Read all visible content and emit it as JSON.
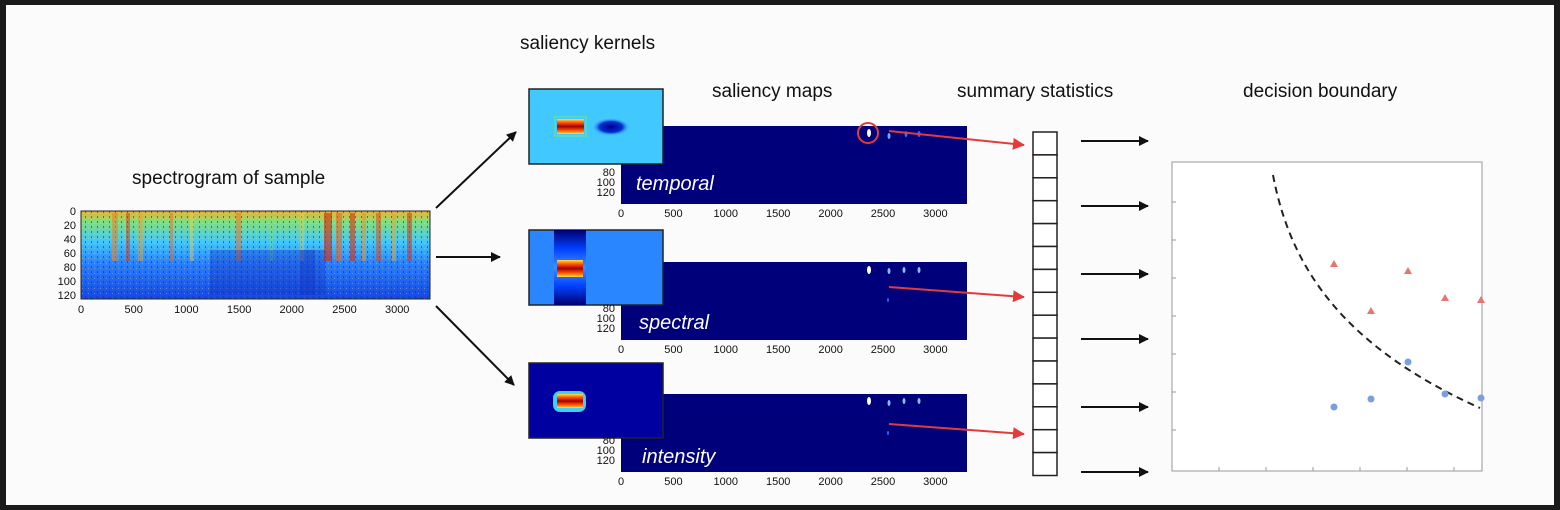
{
  "titles": {
    "spectrogram": "spectrogram of sample",
    "kernels": "saliency kernels",
    "maps": "saliency maps",
    "stats": "summary statistics",
    "boundary": "decision boundary"
  },
  "spectrogram": {
    "yticks": [
      "0",
      "20",
      "40",
      "60",
      "80",
      "100",
      "120"
    ],
    "xticks": [
      "0",
      "500",
      "1000",
      "1500",
      "2000",
      "2500",
      "3000"
    ]
  },
  "saliency_maps": [
    {
      "label": "temporal",
      "yticks": [
        "80",
        "100",
        "120"
      ],
      "xticks": [
        "0",
        "500",
        "1000",
        "1500",
        "2000",
        "2500",
        "3000"
      ]
    },
    {
      "label": "spectral",
      "yticks": [
        "80",
        "100",
        "120"
      ],
      "xticks": [
        "0",
        "500",
        "1000",
        "1500",
        "2000",
        "2500",
        "3000"
      ]
    },
    {
      "label": "intensity",
      "yticks": [
        "80",
        "100",
        "120"
      ],
      "xticks": [
        "0",
        "500",
        "1000",
        "1500",
        "2000",
        "2500",
        "3000"
      ]
    }
  ],
  "summary_cells": 15,
  "colors": {
    "jet_dark": "#00007f",
    "jet_blue": "#0040ff",
    "jet_cyan": "#30c0ff",
    "jet_red": "#c01000",
    "red_arrow": "#e53a3a",
    "triangle": "#e8746e",
    "circle": "#7b9fdd"
  },
  "decision_plot": {
    "triangles": [
      [
        1334,
        264
      ],
      [
        1408,
        271
      ],
      [
        1371,
        311
      ],
      [
        1445,
        298
      ],
      [
        1481,
        300
      ]
    ],
    "circles": [
      [
        1334,
        407
      ],
      [
        1371,
        399
      ],
      [
        1408,
        362
      ],
      [
        1445,
        394
      ],
      [
        1481,
        398
      ]
    ]
  }
}
